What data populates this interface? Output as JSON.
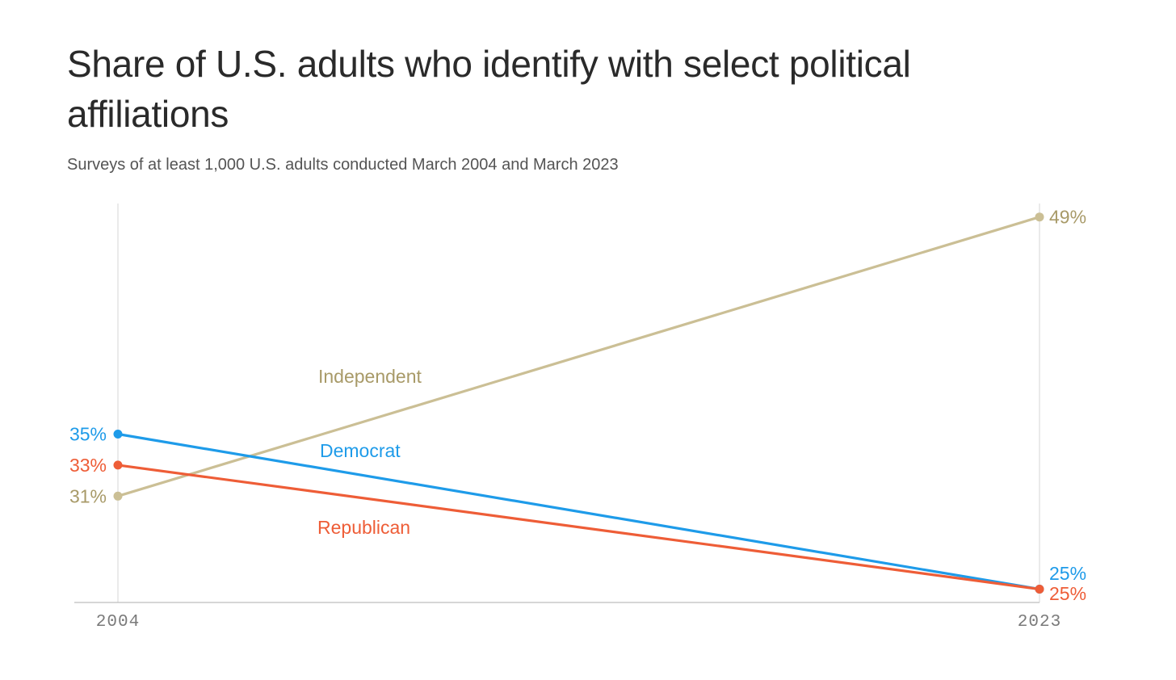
{
  "chart_data": {
    "type": "line",
    "title": "Share of U.S. adults who identify with select political affiliations",
    "subtitle": "Surveys of at least 1,000 U.S. adults conducted March 2004 and March 2023",
    "xlabel": "",
    "ylabel": "",
    "x": [
      "2004",
      "2023"
    ],
    "ylim": [
      20,
      50
    ],
    "grid": false,
    "legend": "inline",
    "series": [
      {
        "name": "Independent",
        "values": [
          31,
          49
        ],
        "value_labels": [
          "31%",
          "49%"
        ],
        "color": "#cbbf95",
        "label_color": "#a89a68"
      },
      {
        "name": "Democrat",
        "values": [
          35,
          25
        ],
        "value_labels": [
          "35%",
          "25%"
        ],
        "color": "#1e9be9",
        "label_color": "#1e9be9"
      },
      {
        "name": "Republican",
        "values": [
          33,
          25
        ],
        "value_labels": [
          "33%",
          "25%"
        ],
        "color": "#ee5d37",
        "label_color": "#ee5d37"
      }
    ]
  }
}
